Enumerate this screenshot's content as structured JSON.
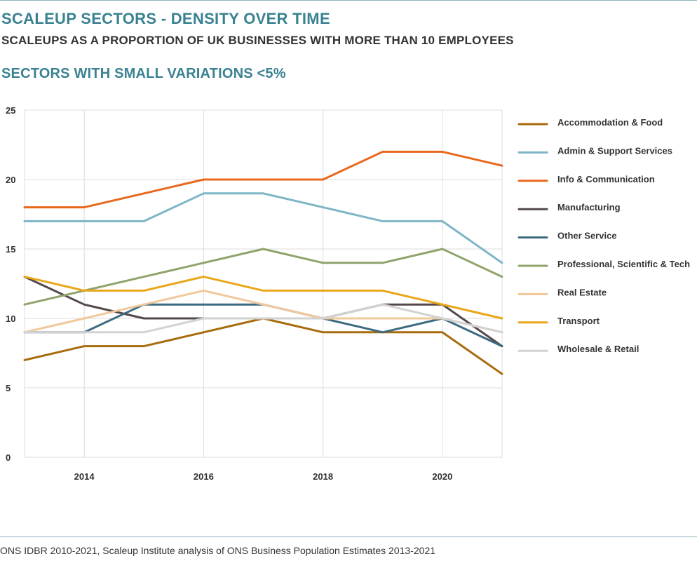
{
  "title": "SCALEUP SECTORS - DENSITY OVER TIME",
  "subtitle": "SCALEUPS AS A PROPORTION OF UK BUSINESSES WITH MORE THAN 10 EMPLOYEES",
  "section_title": "SECTORS WITH SMALL VARIATIONS <5%",
  "source": "ONS IDBR 2010-2021, Scaleup Institute analysis of ONS Business Population Estimates 2013-2021",
  "chart_data": {
    "type": "line",
    "x": [
      2013,
      2014,
      2015,
      2016,
      2017,
      2018,
      2019,
      2020,
      2021
    ],
    "xlim": [
      2013,
      2021
    ],
    "ylim": [
      0,
      25
    ],
    "x_ticks": [
      "2014",
      "2016",
      "2018",
      "2020"
    ],
    "y_ticks": [
      "0",
      "5",
      "10",
      "15",
      "20",
      "25"
    ],
    "grid": true,
    "legend_position": "right",
    "series": [
      {
        "name": "Accommodation & Food",
        "color": "#a86b0e",
        "values": [
          7,
          8,
          8,
          9,
          10,
          9,
          9,
          9,
          6
        ]
      },
      {
        "name": "Admin & Support Services",
        "color": "#7fb5c6",
        "values": [
          17,
          17,
          17,
          19,
          19,
          18,
          17,
          17,
          14
        ]
      },
      {
        "name": "Info & Communication",
        "color": "#e8681e",
        "values": [
          18,
          18,
          19,
          20,
          20,
          20,
          22,
          22,
          21
        ]
      },
      {
        "name": "Manufacturing",
        "color": "#54484b",
        "values": [
          13,
          11,
          10,
          10,
          10,
          10,
          11,
          11,
          8
        ]
      },
      {
        "name": "Other Service",
        "color": "#3c6a7f",
        "values": [
          9,
          9,
          11,
          11,
          11,
          10,
          9,
          10,
          8
        ]
      },
      {
        "name": "Professional, Scientific & Tech",
        "color": "#8fa46c",
        "values": [
          11,
          12,
          13,
          14,
          15,
          14,
          14,
          15,
          13
        ]
      },
      {
        "name": "Real Estate",
        "color": "#f0c89b",
        "values": [
          9,
          10,
          11,
          12,
          11,
          10,
          10,
          10,
          9
        ]
      },
      {
        "name": "Transport",
        "color": "#e9a719",
        "values": [
          13,
          12,
          12,
          13,
          12,
          12,
          12,
          11,
          10
        ]
      },
      {
        "name": "Wholesale & Retail",
        "color": "#d2d2d2",
        "values": [
          9,
          9,
          9,
          10,
          10,
          10,
          11,
          10,
          9
        ]
      }
    ]
  }
}
